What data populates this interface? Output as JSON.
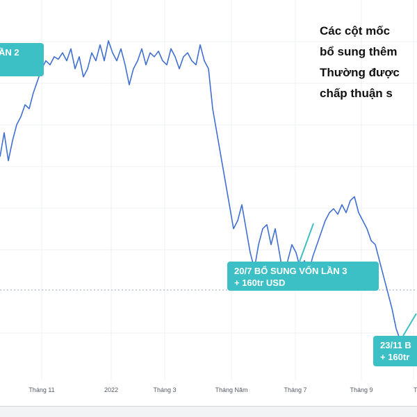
{
  "note_lines": [
    "Các cột mốc",
    "bổ sung thêm",
    "Thường được",
    "chấp thuận s"
  ],
  "callouts": [
    {
      "lines": [
        "ẦN 2"
      ]
    },
    {
      "lines": [
        "20/7 BỔ SUNG VỐN LẦN 3",
        "+ 160tr USD"
      ]
    },
    {
      "lines": [
        "23/11 B",
        "+ 160tr"
      ]
    }
  ],
  "colors": {
    "line": "#3f6fd1",
    "callout": "#3dbfc6",
    "reference": "#9aa6b8"
  },
  "chart_data": {
    "type": "line",
    "x_tick_labels": [
      "Tháng 11",
      "2022",
      "Tháng 3",
      "Tháng Năm",
      "Tháng 7",
      "Tháng 9",
      "T"
    ],
    "y_tick_labels": [],
    "grid": true,
    "xlabel": "",
    "ylabel": "",
    "x": [
      0,
      6,
      12,
      18,
      24,
      30,
      36,
      42,
      48,
      54,
      60,
      66,
      72,
      78,
      84,
      90,
      96,
      102,
      108,
      114,
      120,
      126,
      132,
      138,
      144,
      150,
      156,
      162,
      168,
      174,
      180,
      186,
      192,
      198,
      204,
      210,
      216,
      222,
      228,
      234,
      240,
      246,
      252,
      258,
      264,
      270,
      276,
      282,
      288,
      294,
      300,
      306,
      312,
      318,
      324,
      330,
      336,
      342,
      348,
      354,
      360,
      366,
      372,
      378,
      384,
      390,
      396,
      402,
      408,
      414,
      420,
      426,
      432,
      438,
      444,
      450,
      456,
      462,
      468,
      474,
      480,
      486,
      492,
      498,
      504,
      510,
      516,
      522,
      528,
      534,
      540,
      546,
      552,
      558,
      564,
      570,
      576,
      582,
      588,
      594,
      600
    ],
    "values": [
      390,
      420,
      385,
      410,
      430,
      440,
      455,
      450,
      470,
      485,
      500,
      510,
      505,
      515,
      512,
      520,
      510,
      525,
      500,
      515,
      490,
      500,
      520,
      510,
      530,
      510,
      535,
      520,
      510,
      525,
      505,
      480,
      500,
      510,
      525,
      505,
      520,
      515,
      522,
      510,
      505,
      525,
      515,
      500,
      515,
      520,
      510,
      505,
      530,
      510,
      500,
      450,
      420,
      390,
      360,
      330,
      300,
      310,
      330,
      300,
      270,
      250,
      280,
      300,
      305,
      280,
      300,
      270,
      240,
      260,
      280,
      270,
      250,
      260,
      245,
      265,
      280,
      295,
      310,
      320,
      325,
      318,
      330,
      320,
      335,
      340,
      320,
      310,
      300,
      285,
      280,
      260,
      240,
      220,
      200,
      175,
      160,
      165,
      150,
      140,
      135
    ]
  }
}
